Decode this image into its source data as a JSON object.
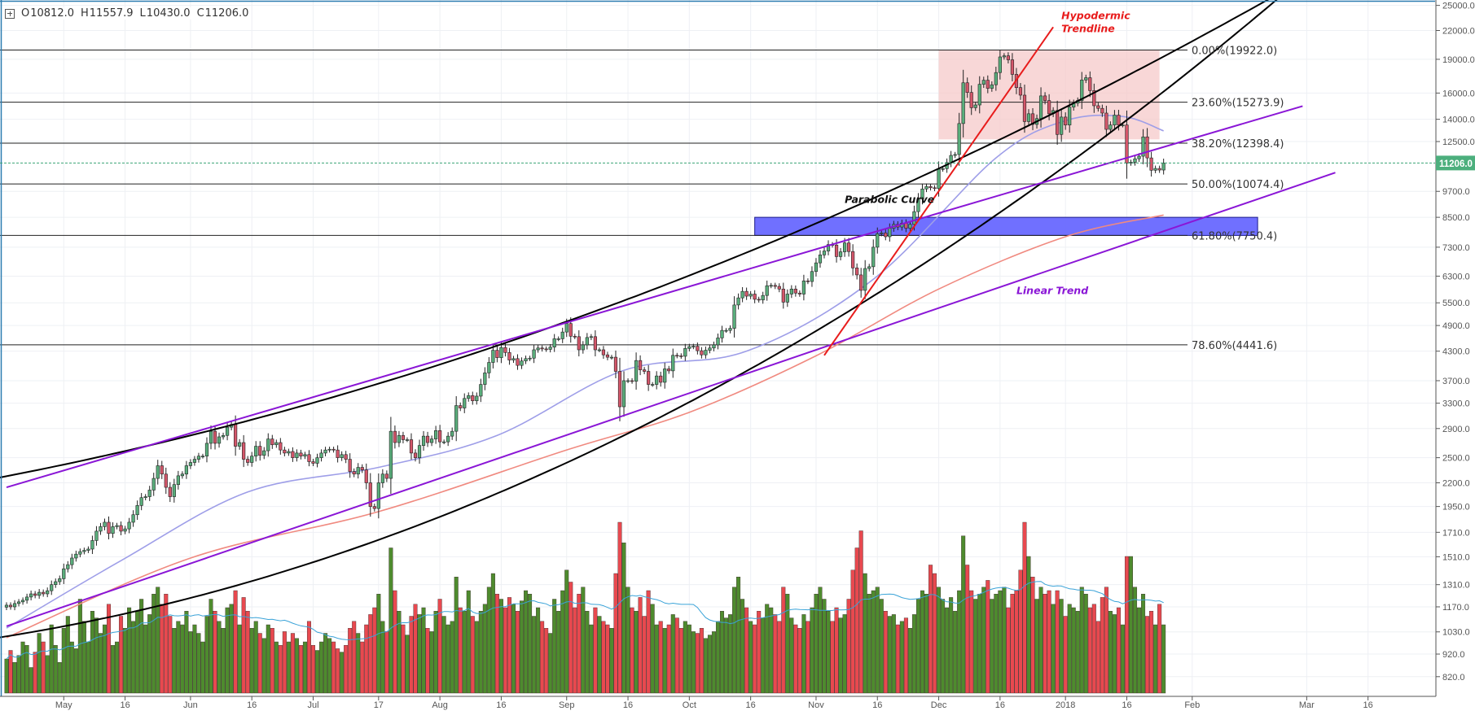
{
  "header": {
    "open_label": "O",
    "open": "10812.0",
    "high_label": "H",
    "high": "11557.9",
    "low_label": "L",
    "low": "10430.0",
    "close_label": "C",
    "close": "11206.0"
  },
  "colors": {
    "up": "#5aae7c",
    "down": "#d4566a",
    "vol_up": "#4e8b2e",
    "vol_down": "#e8494f",
    "ma50": "#9e9ee8",
    "ma200": "#f08a80",
    "vol_ma": "#3aa3d8",
    "parabolic": "#000000",
    "linear": "#8a16d6",
    "hypodermic": "#e81c1c",
    "pink_zone": "#f6c9c9",
    "blue_zone": "#6060ff",
    "last_price": "#4caf7d"
  },
  "chart_data": {
    "type": "candlestick",
    "y_scale": "log",
    "grid": true,
    "start_date": "2017-04-17",
    "closes": [
      1180,
      1170,
      1190,
      1200,
      1210,
      1230,
      1250,
      1240,
      1260,
      1250,
      1270,
      1310,
      1330,
      1350,
      1420,
      1450,
      1500,
      1530,
      1550,
      1560,
      1570,
      1640,
      1720,
      1760,
      1800,
      1700,
      1760,
      1770,
      1720,
      1740,
      1800,
      1870,
      1960,
      2040,
      2050,
      2120,
      2250,
      2400,
      2300,
      2150,
      2050,
      2180,
      2280,
      2300,
      2400,
      2440,
      2480,
      2520,
      2520,
      2690,
      2860,
      2690,
      2780,
      2800,
      2920,
      2960,
      2650,
      2700,
      2480,
      2440,
      2520,
      2650,
      2530,
      2590,
      2750,
      2670,
      2700,
      2600,
      2560,
      2580,
      2500,
      2560,
      2520,
      2540,
      2450,
      2430,
      2500,
      2560,
      2600,
      2610,
      2600,
      2500,
      2540,
      2480,
      2330,
      2300,
      2380,
      2350,
      2200,
      1950,
      1930,
      2200,
      2300,
      2250,
      2860,
      2700,
      2800,
      2740,
      2740,
      2560,
      2500,
      2660,
      2790,
      2700,
      2750,
      2870,
      2710,
      2710,
      2790,
      2860,
      3260,
      3220,
      3380,
      3430,
      3340,
      3420,
      3630,
      3850,
      4060,
      4320,
      4160,
      4380,
      4270,
      4110,
      4140,
      4000,
      4090,
      4140,
      4150,
      4330,
      4370,
      4350,
      4340,
      4390,
      4580,
      4580,
      4740,
      4950,
      4640,
      4630,
      4330,
      4440,
      4610,
      4630,
      4330,
      4330,
      4220,
      4170,
      4170,
      3880,
      3240,
      3700,
      3700,
      3690,
      4100,
      3910,
      3880,
      3630,
      3630,
      3790,
      3670,
      3930,
      3890,
      4210,
      4200,
      4190,
      4360,
      4400,
      4410,
      4310,
      4220,
      4320,
      4370,
      4440,
      4600,
      4780,
      4780,
      4830,
      5440,
      5640,
      5830,
      5690,
      5750,
      5600,
      5580,
      5710,
      6000,
      6010,
      5980,
      5900,
      5520,
      5750,
      5900,
      5780,
      5750,
      6150,
      6130,
      6450,
      6740,
      7020,
      7160,
      7400,
      7380,
      6960,
      7130,
      7460,
      7140,
      6570,
      6340,
      5860,
      6550,
      6610,
      7300,
      7820,
      7850,
      7700,
      8040,
      8200,
      8090,
      8250,
      8040,
      8200,
      8750,
      9330,
      9820,
      9940,
      9880,
      9840,
      10860,
      10890,
      11230,
      11650,
      11700,
      13700,
      16860,
      16050,
      14850,
      15060,
      16730,
      17080,
      16390,
      16690,
      17760,
      19230,
      19340,
      18950,
      17600,
      16450,
      15830,
      13840,
      14400,
      13640,
      14050,
      15770,
      15400,
      14400,
      14640,
      12960,
      14160,
      13600,
      14900,
      15200,
      15400,
      17100,
      17300,
      16200,
      15000,
      14800,
      14450,
      13300,
      13600,
      14300,
      13600,
      13600,
      11200,
      11250,
      11450,
      11600,
      12800,
      11500,
      10800,
      10900,
      10812,
      11206
    ],
    "volume": [
      20,
      25,
      18,
      22,
      30,
      28,
      15,
      24,
      35,
      30,
      22,
      40,
      28,
      18,
      38,
      45,
      30,
      26,
      55,
      42,
      30,
      48,
      44,
      35,
      40,
      52,
      28,
      30,
      45,
      38,
      50,
      42,
      48,
      55,
      40,
      46,
      58,
      62,
      52,
      58,
      45,
      38,
      42,
      40,
      48,
      36,
      40,
      35,
      30,
      45,
      55,
      48,
      42,
      38,
      50,
      52,
      60,
      40,
      56,
      48,
      38,
      42,
      35,
      32,
      40,
      38,
      30,
      28,
      36,
      30,
      35,
      32,
      28,
      30,
      42,
      28,
      25,
      30,
      35,
      32,
      30,
      26,
      24,
      28,
      38,
      42,
      35,
      30,
      40,
      46,
      50,
      58,
      42,
      36,
      85,
      60,
      48,
      40,
      34,
      45,
      52,
      46,
      50,
      38,
      36,
      48,
      55,
      45,
      40,
      42,
      68,
      50,
      48,
      60,
      45,
      42,
      48,
      52,
      62,
      70,
      58,
      55,
      50,
      56,
      52,
      48,
      54,
      60,
      58,
      45,
      50,
      42,
      38,
      35,
      55,
      48,
      60,
      72,
      65,
      50,
      58,
      62,
      48,
      40,
      50,
      45,
      42,
      40,
      38,
      70,
      100,
      88,
      62,
      50,
      48,
      56,
      45,
      60,
      52,
      40,
      42,
      38,
      40,
      46,
      44,
      38,
      42,
      40,
      36,
      35,
      38,
      32,
      34,
      36,
      42,
      48,
      44,
      46,
      62,
      68,
      55,
      50,
      42,
      40,
      48,
      44,
      52,
      50,
      46,
      42,
      62,
      58,
      44,
      40,
      38,
      46,
      42,
      50,
      58,
      62,
      55,
      48,
      42,
      50,
      44,
      46,
      55,
      72,
      85,
      95,
      70,
      58,
      60,
      62,
      55,
      48,
      45,
      46,
      40,
      42,
      44,
      38,
      46,
      55,
      60,
      58,
      75,
      70,
      62,
      55,
      50,
      56,
      48,
      60,
      92,
      75,
      60,
      55,
      58,
      62,
      66,
      55,
      58,
      60,
      62,
      50,
      58,
      60,
      72,
      100,
      80,
      68,
      55,
      62,
      58,
      60,
      52,
      60,
      55,
      45,
      52,
      50,
      48,
      62,
      58,
      50,
      52,
      42,
      56,
      62,
      48,
      46,
      50,
      40,
      80,
      80,
      62,
      50,
      58,
      45,
      48,
      40,
      52,
      40
    ],
    "ma50": [
      [
        "2017-04-17",
        1050
      ],
      [
        "2017-05-15",
        1480
      ],
      [
        "2017-06-15",
        2100
      ],
      [
        "2017-07-17",
        2380
      ],
      [
        "2017-08-15",
        2800
      ],
      [
        "2017-09-15",
        3900
      ],
      [
        "2017-10-15",
        4300
      ],
      [
        "2017-11-15",
        6200
      ],
      [
        "2017-12-15",
        11500
      ],
      [
        "2018-01-01",
        13900
      ],
      [
        "2018-01-15",
        14200
      ],
      [
        "2018-01-25",
        13200
      ]
    ],
    "ma200": [
      [
        "2017-04-17",
        1000
      ],
      [
        "2017-06-01",
        1500
      ],
      [
        "2017-07-17",
        1900
      ],
      [
        "2017-09-01",
        2600
      ],
      [
        "2017-10-01",
        3150
      ],
      [
        "2017-11-01",
        4200
      ],
      [
        "2017-12-01",
        5900
      ],
      [
        "2018-01-01",
        7700
      ],
      [
        "2018-01-25",
        8600
      ]
    ],
    "price_ticks": [
      25000,
      22000,
      19000,
      16000,
      14000,
      12500,
      9700,
      8500,
      7300,
      6300,
      5500,
      4900,
      4300,
      3700,
      3300,
      2900,
      2500,
      2200,
      1950,
      1710,
      1510,
      1310,
      1170,
      1030,
      920,
      820
    ],
    "price_tick_labels": [
      "25000.0",
      "22000.0",
      "19000.0",
      "16000.0",
      "14000.0",
      "12500.0",
      "9700.0",
      "8500.0",
      "7300.0",
      "6300.0",
      "5500.0",
      "4900.0",
      "4300.0",
      "3700.0",
      "3300.0",
      "2900.0",
      "2500.0",
      "2200.0",
      "1950.0",
      "1710.0",
      "1510.0",
      "1310.0",
      "1170.0",
      "1030.0",
      "920.0",
      "820.0"
    ],
    "date_ticks": [
      {
        "label": "May",
        "date": "2017-05-01"
      },
      {
        "label": "16",
        "date": "2017-05-16"
      },
      {
        "label": "Jun",
        "date": "2017-06-01"
      },
      {
        "label": "16",
        "date": "2017-06-16"
      },
      {
        "label": "Jul",
        "date": "2017-07-01"
      },
      {
        "label": "17",
        "date": "2017-07-17"
      },
      {
        "label": "Aug",
        "date": "2017-08-01"
      },
      {
        "label": "16",
        "date": "2017-08-16"
      },
      {
        "label": "Sep",
        "date": "2017-09-01"
      },
      {
        "label": "16",
        "date": "2017-09-16"
      },
      {
        "label": "Oct",
        "date": "2017-10-01"
      },
      {
        "label": "16",
        "date": "2017-10-16"
      },
      {
        "label": "Nov",
        "date": "2017-11-01"
      },
      {
        "label": "16",
        "date": "2017-11-16"
      },
      {
        "label": "Dec",
        "date": "2017-12-01"
      },
      {
        "label": "16",
        "date": "2017-12-16"
      },
      {
        "label": "2018",
        "date": "2018-01-01"
      },
      {
        "label": "16",
        "date": "2018-01-16"
      },
      {
        "label": "Feb",
        "date": "2018-02-01"
      },
      {
        "label": "Mar",
        "date": "2018-03-01"
      },
      {
        "label": "16",
        "date": "2018-03-16"
      }
    ],
    "last_price": {
      "value": 11206.0,
      "label": "11206.0"
    },
    "fib_levels": [
      {
        "price": 19922.0,
        "label": "0.00%(19922.0)"
      },
      {
        "price": 15273.9,
        "label": "23.60%(15273.9)"
      },
      {
        "price": 12398.4,
        "label": "38.20%(12398.4)"
      },
      {
        "price": 10074.4,
        "label": "50.00%(10074.4)"
      },
      {
        "price": 7750.4,
        "label": "61.80%(7750.4)"
      },
      {
        "price": 4441.6,
        "label": "78.60%(4441.6)"
      }
    ],
    "parabolic_curves": [
      [
        [
          "2017-04-17",
          2275
        ],
        [
          "2017-09-01",
          5000
        ],
        [
          "2018-02-17",
          25000
        ]
      ],
      [
        [
          "2017-04-17",
          1007
        ],
        [
          "2017-09-15",
          2800
        ],
        [
          "2018-02-20",
          25000
        ]
      ]
    ],
    "linear_trends": [
      [
        [
          "2017-04-17",
          2150
        ],
        [
          "2018-02-28",
          14970
        ]
      ],
      [
        [
          "2017-04-17",
          1060
        ],
        [
          "2018-03-08",
          10670
        ]
      ]
    ],
    "hypodermic_trendline": [
      [
        "2017-11-03",
        4210
      ],
      [
        "2017-12-29",
        22380
      ]
    ],
    "pink_zone": {
      "from": "2017-12-01",
      "to": "2018-01-24",
      "top": 19922.0,
      "bottom": 12640
    },
    "blue_zone": {
      "from": "2017-10-17",
      "to": "2018-02-17",
      "top": 8500,
      "bottom": 7750.4
    },
    "annotations": [
      {
        "text": "Parabolic Curve",
        "date": "2017-11-08",
        "price": 9150,
        "color": "#111111"
      },
      {
        "text": "Linear Trend",
        "date": "2017-12-20",
        "price": 5750,
        "color": "#8a16d6"
      },
      {
        "text": "Hypodermic",
        "date": "2017-12-31",
        "price": 23300,
        "color": "#e81c1c"
      },
      {
        "text": "Trendline",
        "date": "2017-12-31",
        "price": 21800,
        "color": "#e81c1c"
      }
    ]
  }
}
